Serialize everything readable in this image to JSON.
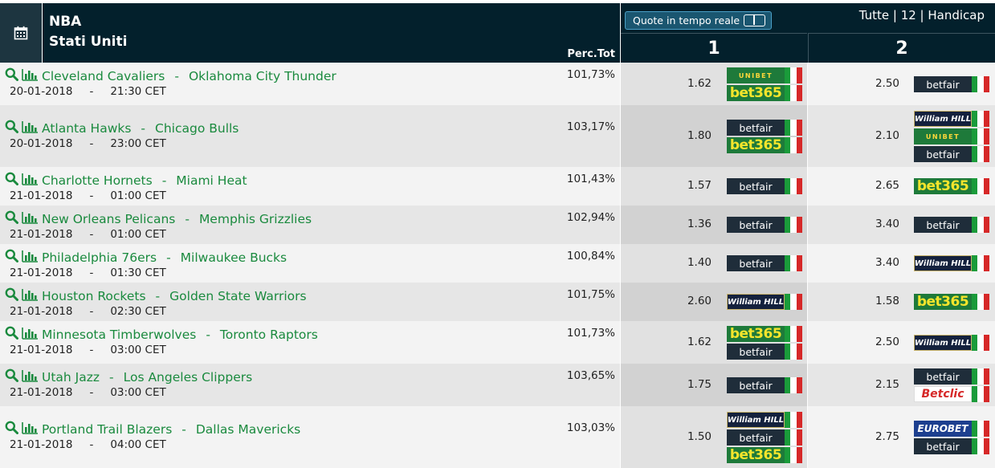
{
  "header": {
    "league": "NBA",
    "country": "Stati Uniti",
    "perc_label": "Perc.Tot",
    "live_label": "Quote in tempo reale",
    "filters": "Tutte | 12 | Handicap",
    "col1": "1",
    "col2": "2",
    "calendar_icon": "calendar-icon"
  },
  "colors": {
    "header_bg": "#03202c",
    "team_link": "#1a8a3e",
    "bet365_yellow": "#f5e52c"
  },
  "matches": [
    {
      "home": "Cleveland Cavaliers",
      "away": "Oklahoma City Thunder",
      "date": "20-01-2018",
      "time": "21:30 CET",
      "perc": "101,73%",
      "odd1": "1.62",
      "bk1": [
        "UNIBET",
        "bet365"
      ],
      "odd2": "2.50",
      "bk2": [
        "betfair"
      ]
    },
    {
      "home": "Atlanta Hawks",
      "away": "Chicago Bulls",
      "date": "20-01-2018",
      "time": "23:00 CET",
      "perc": "103,17%",
      "odd1": "1.80",
      "bk1": [
        "betfair",
        "bet365"
      ],
      "odd2": "2.10",
      "bk2": [
        "William HILL",
        "UNIBET",
        "betfair"
      ]
    },
    {
      "home": "Charlotte Hornets",
      "away": "Miami Heat",
      "date": "21-01-2018",
      "time": "01:00 CET",
      "perc": "101,43%",
      "odd1": "1.57",
      "bk1": [
        "betfair"
      ],
      "odd2": "2.65",
      "bk2": [
        "bet365"
      ]
    },
    {
      "home": "New Orleans Pelicans",
      "away": "Memphis Grizzlies",
      "date": "21-01-2018",
      "time": "01:00 CET",
      "perc": "102,94%",
      "odd1": "1.36",
      "bk1": [
        "betfair"
      ],
      "odd2": "3.40",
      "bk2": [
        "betfair"
      ]
    },
    {
      "home": "Philadelphia 76ers",
      "away": "Milwaukee Bucks",
      "date": "21-01-2018",
      "time": "01:30 CET",
      "perc": "100,84%",
      "odd1": "1.40",
      "bk1": [
        "betfair"
      ],
      "odd2": "3.40",
      "bk2": [
        "William HILL"
      ]
    },
    {
      "home": "Houston Rockets",
      "away": "Golden State Warriors",
      "date": "21-01-2018",
      "time": "02:30 CET",
      "perc": "101,75%",
      "odd1": "2.60",
      "bk1": [
        "William HILL"
      ],
      "odd2": "1.58",
      "bk2": [
        "bet365"
      ]
    },
    {
      "home": "Minnesota Timberwolves",
      "away": "Toronto Raptors",
      "date": "21-01-2018",
      "time": "03:00 CET",
      "perc": "101,73%",
      "odd1": "1.62",
      "bk1": [
        "bet365",
        "betfair"
      ],
      "odd2": "2.50",
      "bk2": [
        "William HILL"
      ]
    },
    {
      "home": "Utah Jazz",
      "away": "Los Angeles Clippers",
      "date": "21-01-2018",
      "time": "03:00 CET",
      "perc": "103,65%",
      "odd1": "1.75",
      "bk1": [
        "betfair"
      ],
      "odd2": "2.15",
      "bk2": [
        "betfair",
        "Betclic"
      ]
    },
    {
      "home": "Portland Trail Blazers",
      "away": "Dallas Mavericks",
      "date": "21-01-2018",
      "time": "04:00 CET",
      "perc": "103,03%",
      "odd1": "1.50",
      "bk1": [
        "William HILL",
        "betfair",
        "bet365"
      ],
      "odd2": "2.75",
      "bk2": [
        "EUROBET",
        "betfair"
      ]
    }
  ]
}
